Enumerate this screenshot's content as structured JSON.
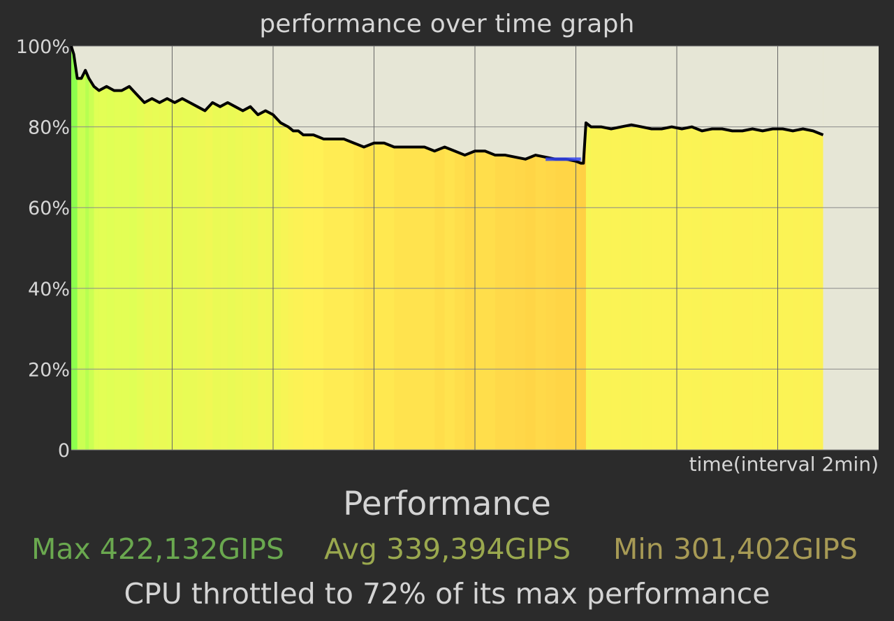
{
  "chart_data": {
    "type": "area",
    "title": "performance over time graph",
    "xlabel": "time(interval 2min)",
    "ylabel": "",
    "ylim": [
      0,
      100
    ],
    "y_ticks": [
      "0",
      "20%",
      "40%",
      "60%",
      "80%",
      "100%"
    ],
    "y_tick_values": [
      0,
      20,
      40,
      60,
      80,
      100
    ],
    "x_range": [
      0,
      16
    ],
    "x_gridlines": [
      2,
      4,
      6,
      8,
      10,
      12,
      14
    ],
    "grid": true,
    "series": [
      {
        "x": [
          0,
          0.05,
          0.12,
          0.2,
          0.28,
          0.35,
          0.45,
          0.55,
          0.7,
          0.85,
          1,
          1.15,
          1.3,
          1.45,
          1.6,
          1.75,
          1.9,
          2.05,
          2.2,
          2.35,
          2.5,
          2.65,
          2.8,
          2.95,
          3.1,
          3.25,
          3.4,
          3.55,
          3.7,
          3.85,
          4,
          4.15,
          4.3,
          4.4,
          4.5,
          4.6,
          4.8,
          5,
          5.2,
          5.4,
          5.6,
          5.8,
          6,
          6.2,
          6.4,
          6.6,
          6.8,
          7,
          7.2,
          7.4,
          7.6,
          7.8,
          8,
          8.2,
          8.4,
          8.6,
          8.8,
          9,
          9.2,
          9.4,
          9.6,
          9.8,
          10,
          10.1,
          10.15,
          10.2,
          10.3,
          10.5,
          10.7,
          10.9,
          11.1,
          11.3,
          11.5,
          11.7,
          11.9,
          12.1,
          12.3,
          12.5,
          12.7,
          12.9,
          13.1,
          13.3,
          13.5,
          13.7,
          13.9,
          14.1,
          14.3,
          14.5,
          14.7,
          14.9
        ],
        "values": [
          100,
          98,
          92,
          92,
          94,
          92,
          90,
          89,
          90,
          89,
          89,
          90,
          88,
          86,
          87,
          86,
          87,
          86,
          87,
          86,
          85,
          84,
          86,
          85,
          86,
          85,
          84,
          85,
          83,
          84,
          83,
          81,
          80,
          79,
          79,
          78,
          78,
          77,
          77,
          77,
          76,
          75,
          76,
          76,
          75,
          75,
          75,
          75,
          74,
          75,
          74,
          73,
          74,
          74,
          73,
          73,
          72.5,
          72,
          73,
          72.5,
          72,
          72,
          71.5,
          71,
          71,
          81,
          80,
          80,
          79.5,
          80,
          80.5,
          80,
          79.5,
          79.5,
          80,
          79.5,
          80,
          79,
          79.5,
          79.5,
          79,
          79,
          79.5,
          79,
          79.5,
          79.5,
          79,
          79.5,
          79,
          78
        ]
      }
    ]
  },
  "section_title": "Performance",
  "stats": {
    "max_label": "Max",
    "max_value": "422,132GIPS",
    "avg_label": "Avg",
    "avg_value": "339,394GIPS",
    "min_label": "Min",
    "min_value": "301,402GIPS"
  },
  "summary": "CPU throttled to 72% of its max performance",
  "colors": {
    "background": "#2b2b2b",
    "plot_background": "#e6e6d6",
    "line": "#000000",
    "min_marker": "#3344ee",
    "fill_high": "#8dff4d",
    "fill_mid": "#e0ff55",
    "fill_low": "#fff155",
    "fill_lowest": "#ffd044",
    "max_text": "#6aa84f",
    "avg_text": "#9aa84e",
    "min_text": "#a79a55"
  }
}
